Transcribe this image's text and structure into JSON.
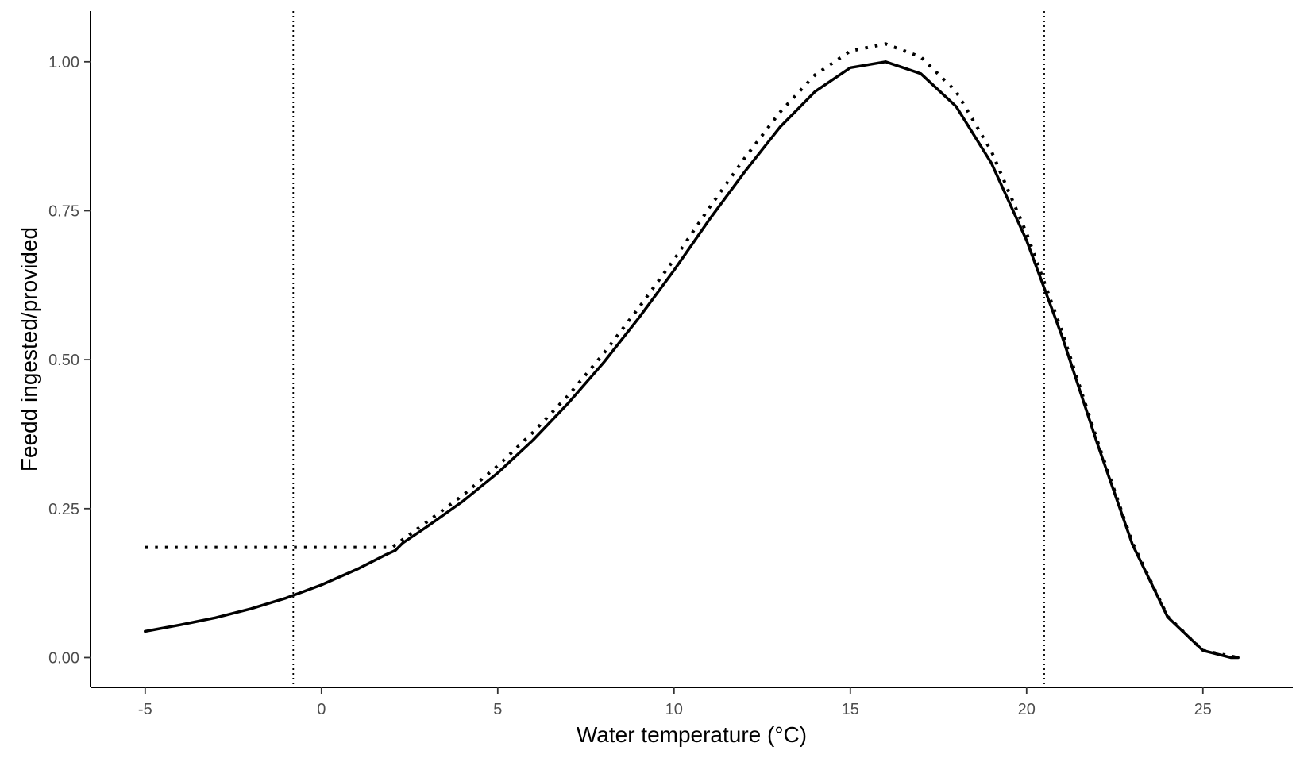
{
  "chart_data": {
    "type": "line",
    "title": "",
    "xlabel": "Water temperature (°C)",
    "ylabel": "Feedd ingested/provided",
    "xlim": [
      -6.55,
      27.55
    ],
    "ylim": [
      -0.05,
      1.085
    ],
    "x_ticks": [
      -5,
      0,
      5,
      10,
      15,
      20,
      25
    ],
    "x_tick_labels": [
      "-5",
      "0",
      "5",
      "10",
      "15",
      "20",
      "25"
    ],
    "y_ticks": [
      0,
      0.25,
      0.5,
      0.75,
      1.0
    ],
    "y_tick_labels": [
      "0.00",
      "0.25",
      "0.50",
      "0.75",
      "1.00"
    ],
    "grid": false,
    "vertical_reference_lines": [
      -0.8,
      20.5
    ],
    "series": [
      {
        "style": "solid",
        "color": "#000000",
        "points": [
          [
            -5,
            0.044
          ],
          [
            -4,
            0.055
          ],
          [
            -3,
            0.067
          ],
          [
            -2,
            0.082
          ],
          [
            -1,
            0.1
          ],
          [
            0,
            0.122
          ],
          [
            1,
            0.148
          ],
          [
            1.8,
            0.172
          ],
          [
            2.1,
            0.18
          ],
          [
            2.3,
            0.192
          ],
          [
            3,
            0.22
          ],
          [
            4,
            0.262
          ],
          [
            5,
            0.31
          ],
          [
            6,
            0.365
          ],
          [
            7,
            0.427
          ],
          [
            8,
            0.495
          ],
          [
            9,
            0.57
          ],
          [
            10,
            0.65
          ],
          [
            11,
            0.735
          ],
          [
            12,
            0.815
          ],
          [
            13,
            0.89
          ],
          [
            14,
            0.95
          ],
          [
            15,
            0.99
          ],
          [
            16,
            1.0
          ],
          [
            17,
            0.98
          ],
          [
            18,
            0.925
          ],
          [
            19,
            0.83
          ],
          [
            20,
            0.7
          ],
          [
            21,
            0.54
          ],
          [
            22,
            0.36
          ],
          [
            23,
            0.19
          ],
          [
            24,
            0.068
          ],
          [
            25,
            0.012
          ],
          [
            25.8,
            0.0
          ],
          [
            26,
            0.0
          ]
        ]
      },
      {
        "style": "dotted",
        "color": "#000000",
        "points": [
          [
            -5,
            0.185
          ],
          [
            -4,
            0.185
          ],
          [
            -3,
            0.185
          ],
          [
            -2,
            0.185
          ],
          [
            -1,
            0.185
          ],
          [
            0,
            0.185
          ],
          [
            1,
            0.185
          ],
          [
            2,
            0.185
          ],
          [
            3,
            0.228
          ],
          [
            4,
            0.272
          ],
          [
            5,
            0.322
          ],
          [
            6,
            0.378
          ],
          [
            7,
            0.44
          ],
          [
            8,
            0.51
          ],
          [
            9,
            0.587
          ],
          [
            10,
            0.668
          ],
          [
            11,
            0.755
          ],
          [
            12,
            0.838
          ],
          [
            13,
            0.915
          ],
          [
            14,
            0.978
          ],
          [
            15,
            1.018
          ],
          [
            16,
            1.03
          ],
          [
            17,
            1.008
          ],
          [
            18,
            0.95
          ],
          [
            19,
            0.85
          ],
          [
            20,
            0.712
          ],
          [
            21,
            0.548
          ],
          [
            22,
            0.365
          ],
          [
            23,
            0.193
          ],
          [
            24,
            0.069
          ],
          [
            25,
            0.012
          ],
          [
            26,
            0.0
          ]
        ]
      }
    ]
  }
}
